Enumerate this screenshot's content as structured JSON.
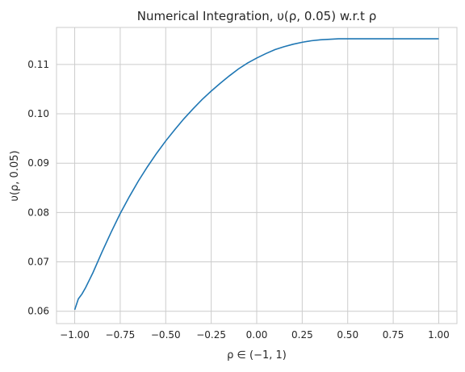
{
  "chart_data": {
    "type": "line",
    "title": "Numerical Integration, υ(ρ, 0.05) w.r.t ρ",
    "xlabel": "ρ ∈ (−1, 1)",
    "ylabel": "υ(ρ, 0.05)",
    "xlim": [
      -1.1,
      1.1
    ],
    "ylim": [
      0.0575,
      0.1175
    ],
    "xticks": [
      -1.0,
      -0.75,
      -0.5,
      -0.25,
      0.0,
      0.25,
      0.5,
      0.75,
      1.0
    ],
    "xtick_labels": [
      "−1.00",
      "−0.75",
      "−0.50",
      "−0.25",
      "0.00",
      "0.25",
      "0.50",
      "0.75",
      "1.00"
    ],
    "yticks": [
      0.06,
      0.07,
      0.08,
      0.09,
      0.1,
      0.11
    ],
    "ytick_labels": [
      "0.06",
      "0.07",
      "0.08",
      "0.09",
      "0.10",
      "0.11"
    ],
    "grid": true,
    "series_color": "#1f77b4",
    "series": [
      {
        "x": [
          -1.0,
          -0.98,
          -0.96,
          -0.94,
          -0.92,
          -0.9,
          -0.85,
          -0.8,
          -0.75,
          -0.7,
          -0.65,
          -0.6,
          -0.55,
          -0.5,
          -0.45,
          -0.4,
          -0.35,
          -0.3,
          -0.25,
          -0.2,
          -0.15,
          -0.1,
          -0.05,
          0.0,
          0.05,
          0.1,
          0.15,
          0.2,
          0.25,
          0.3,
          0.35,
          0.4,
          0.45,
          0.5,
          0.55,
          0.6,
          0.65,
          0.7,
          0.75,
          0.8,
          0.9,
          1.0
        ],
        "y": [
          0.0603,
          0.0625,
          0.0635,
          0.0648,
          0.0663,
          0.0678,
          0.072,
          0.076,
          0.0798,
          0.0832,
          0.0864,
          0.0893,
          0.092,
          0.0945,
          0.0968,
          0.099,
          0.101,
          0.1029,
          0.1046,
          0.1062,
          0.1077,
          0.1091,
          0.1103,
          0.1113,
          0.1122,
          0.113,
          0.1136,
          0.1141,
          0.1145,
          0.1148,
          0.115,
          0.1151,
          0.1152,
          0.1152,
          0.1152,
          0.1152,
          0.1152,
          0.1152,
          0.1152,
          0.1152,
          0.1152,
          0.1152
        ]
      }
    ]
  }
}
